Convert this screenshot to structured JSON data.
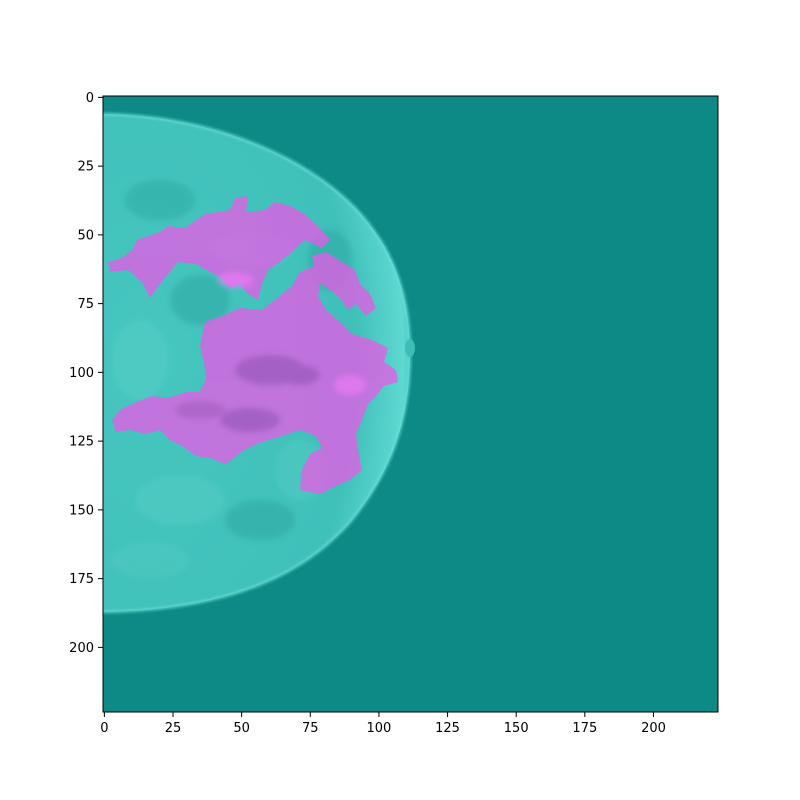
{
  "figure": {
    "image_description_kind": "breast mammogram with colored segmentation overlay",
    "colors": {
      "background": "#0d8a86",
      "tissue": "#3ec4bd",
      "tissue_light": "#5fd6cf",
      "overlay": "#ee66ee"
    },
    "x_axis": {
      "ticks": [
        0,
        25,
        50,
        75,
        100,
        125,
        150,
        175,
        200
      ],
      "range": [
        -0.5,
        223.5
      ]
    },
    "y_axis": {
      "ticks": [
        0,
        25,
        50,
        75,
        100,
        125,
        150,
        175,
        200
      ],
      "range": [
        -0.5,
        223.5
      ],
      "inverted": true
    }
  }
}
